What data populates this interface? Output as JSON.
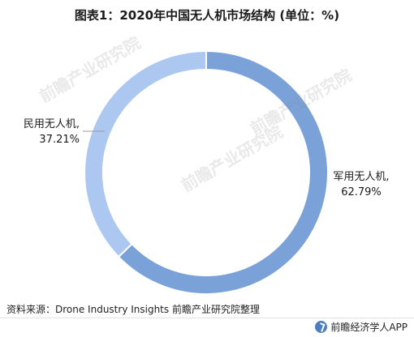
{
  "title": "图表1：2020年中国无人机市场结构 (单位：%)",
  "source": "资料来源：Drone Industry Insights 前瞻产业研究院整理",
  "brand": "前瞻经济学人APP",
  "watermark": "前瞻产业研究院",
  "colors": {
    "military": "#7aa2d8",
    "civil": "#adc8f0",
    "leader": "#9a9a9a",
    "brand": "#4d7fc0"
  },
  "chart_data": {
    "type": "pie",
    "donut": true,
    "categories": [
      "军用无人机",
      "民用无人机"
    ],
    "values": [
      62.79,
      37.21
    ],
    "data_labels": [
      "军用无人机,\n62.79%",
      "民用无人机,\n37.21%"
    ]
  }
}
